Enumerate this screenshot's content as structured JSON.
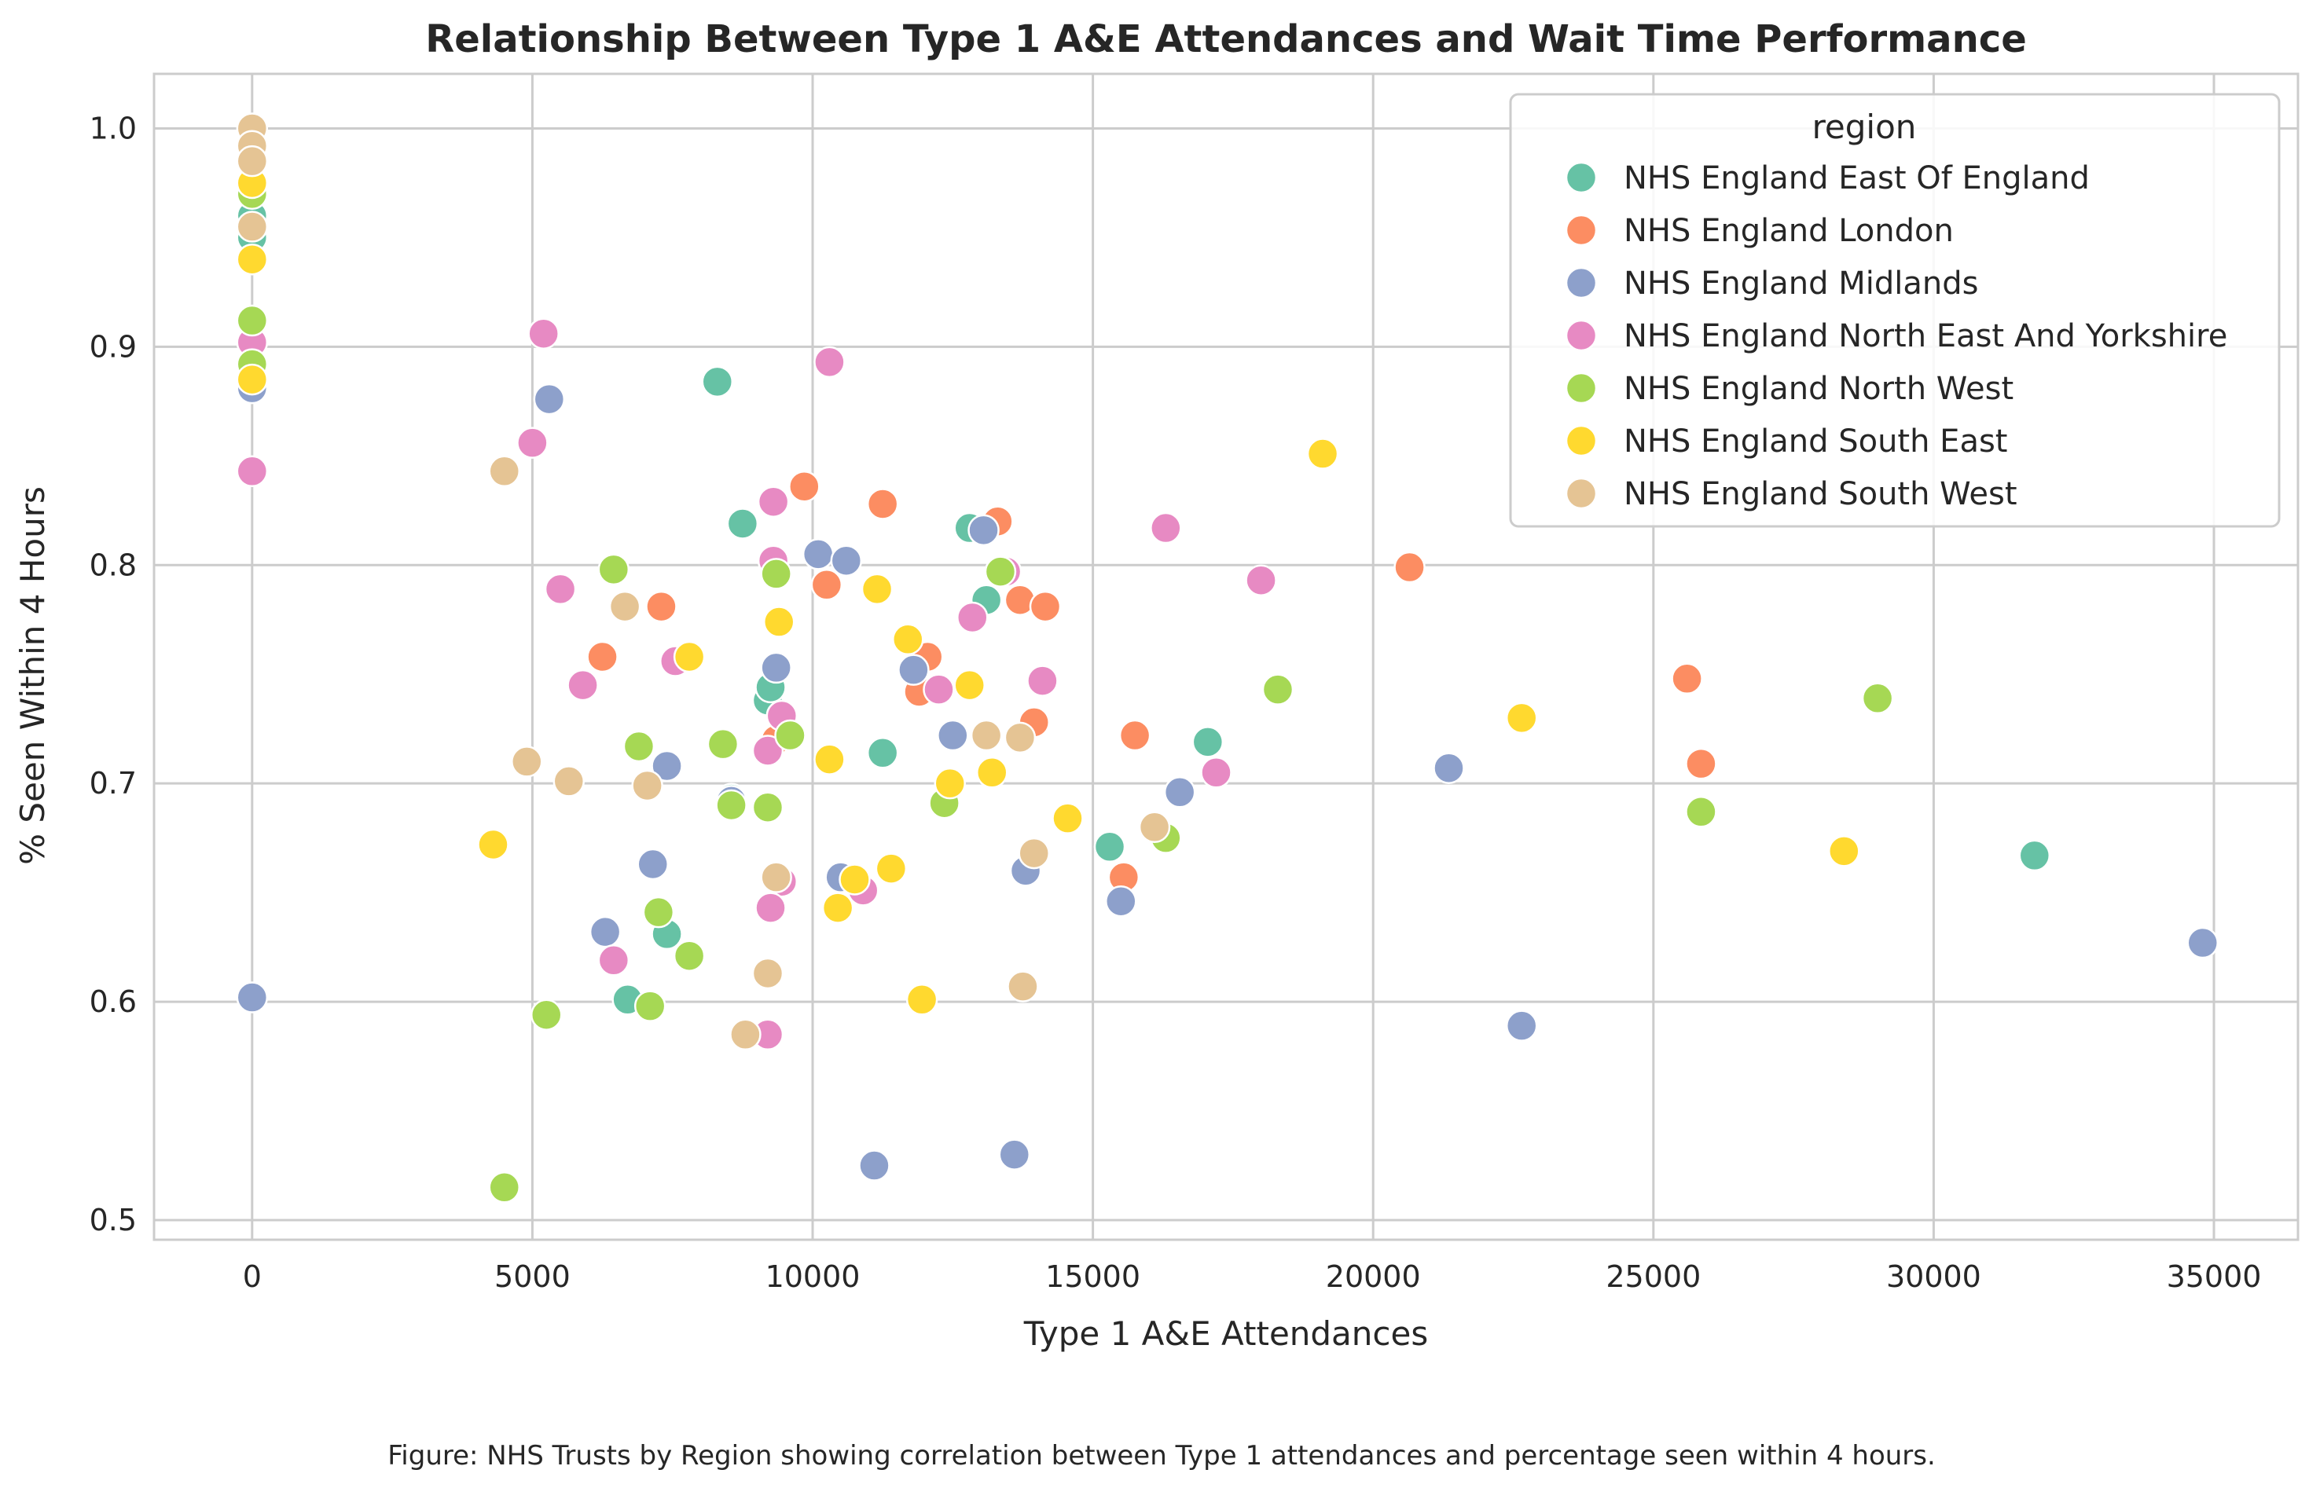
{
  "chart_data": {
    "type": "scatter",
    "title": "Relationship Between Type 1 A&E Attendances and Wait Time Performance",
    "xlabel": "Type 1 A&E Attendances",
    "ylabel": "% Seen Within 4 Hours",
    "xlim": [
      -1750,
      36500
    ],
    "ylim": [
      0.491,
      1.025
    ],
    "x_ticks": [
      0,
      5000,
      10000,
      15000,
      20000,
      25000,
      30000,
      35000
    ],
    "y_ticks": [
      0.5,
      0.6,
      0.7,
      0.8,
      0.9,
      1.0
    ],
    "y_tick_labels": [
      "0.5",
      "0.6",
      "0.7",
      "0.8",
      "0.9",
      "1.0"
    ],
    "grid": true,
    "legend_title": "region",
    "legend_position": "top-right",
    "caption": "Figure: NHS Trusts by Region showing correlation between Type 1 attendances and percentage seen within 4 hours.",
    "series": [
      {
        "name": "NHS England East Of England",
        "color": "#66c2a5",
        "points": [
          [
            0,
            0.95
          ],
          [
            0,
            0.96
          ],
          [
            8300,
            0.884
          ],
          [
            8750,
            0.819
          ],
          [
            12800,
            0.817
          ],
          [
            13100,
            0.784
          ],
          [
            9200,
            0.738
          ],
          [
            9250,
            0.744
          ],
          [
            11250,
            0.714
          ],
          [
            8550,
            0.693
          ],
          [
            7400,
            0.631
          ],
          [
            6700,
            0.601
          ],
          [
            15300,
            0.671
          ],
          [
            17050,
            0.719
          ],
          [
            31800,
            0.667
          ]
        ]
      },
      {
        "name": "NHS England London",
        "color": "#fc8d62",
        "points": [
          [
            9850,
            0.836
          ],
          [
            11250,
            0.828
          ],
          [
            13300,
            0.82
          ],
          [
            10250,
            0.791
          ],
          [
            7300,
            0.781
          ],
          [
            13700,
            0.784
          ],
          [
            14150,
            0.781
          ],
          [
            12050,
            0.758
          ],
          [
            6250,
            0.758
          ],
          [
            11900,
            0.742
          ],
          [
            13950,
            0.728
          ],
          [
            15750,
            0.722
          ],
          [
            15550,
            0.657
          ],
          [
            9350,
            0.72
          ],
          [
            20650,
            0.799
          ],
          [
            25600,
            0.748
          ],
          [
            25850,
            0.709
          ]
        ]
      },
      {
        "name": "NHS England Midlands",
        "color": "#8da0cb",
        "points": [
          [
            0,
            0.881
          ],
          [
            0,
            0.602
          ],
          [
            5300,
            0.876
          ],
          [
            10100,
            0.805
          ],
          [
            10600,
            0.802
          ],
          [
            13050,
            0.816
          ],
          [
            9350,
            0.753
          ],
          [
            11800,
            0.752
          ],
          [
            12500,
            0.722
          ],
          [
            7400,
            0.708
          ],
          [
            8550,
            0.692
          ],
          [
            16550,
            0.696
          ],
          [
            7150,
            0.663
          ],
          [
            6300,
            0.632
          ],
          [
            10500,
            0.657
          ],
          [
            13800,
            0.66
          ],
          [
            15500,
            0.646
          ],
          [
            21350,
            0.707
          ],
          [
            11100,
            0.525
          ],
          [
            13600,
            0.53
          ],
          [
            22650,
            0.589
          ],
          [
            34800,
            0.627
          ]
        ]
      },
      {
        "name": "NHS England North East And Yorkshire",
        "color": "#e78ac3",
        "points": [
          [
            0,
            0.902
          ],
          [
            0,
            0.843
          ],
          [
            5200,
            0.906
          ],
          [
            5000,
            0.856
          ],
          [
            10300,
            0.893
          ],
          [
            9300,
            0.829
          ],
          [
            9300,
            0.802
          ],
          [
            13450,
            0.797
          ],
          [
            12850,
            0.776
          ],
          [
            5500,
            0.789
          ],
          [
            7550,
            0.756
          ],
          [
            5900,
            0.745
          ],
          [
            12250,
            0.743
          ],
          [
            14100,
            0.747
          ],
          [
            9450,
            0.731
          ],
          [
            9200,
            0.715
          ],
          [
            16300,
            0.817
          ],
          [
            18000,
            0.793
          ],
          [
            17200,
            0.705
          ],
          [
            9450,
            0.655
          ],
          [
            10900,
            0.651
          ],
          [
            9250,
            0.643
          ],
          [
            6450,
            0.619
          ],
          [
            9200,
            0.585
          ]
        ]
      },
      {
        "name": "NHS England North West",
        "color": "#a6d854",
        "points": [
          [
            0,
            0.97
          ],
          [
            0,
            0.912
          ],
          [
            0,
            0.892
          ],
          [
            6450,
            0.798
          ],
          [
            9350,
            0.796
          ],
          [
            13350,
            0.797
          ],
          [
            9600,
            0.722
          ],
          [
            8400,
            0.718
          ],
          [
            6900,
            0.717
          ],
          [
            8550,
            0.69
          ],
          [
            9200,
            0.689
          ],
          [
            12350,
            0.691
          ],
          [
            7250,
            0.641
          ],
          [
            7800,
            0.621
          ],
          [
            5250,
            0.594
          ],
          [
            7100,
            0.598
          ],
          [
            16300,
            0.675
          ],
          [
            18300,
            0.743
          ],
          [
            25850,
            0.687
          ],
          [
            29000,
            0.739
          ],
          [
            4500,
            0.515
          ]
        ]
      },
      {
        "name": "NHS England South East",
        "color": "#ffd92f",
        "points": [
          [
            0,
            0.975
          ],
          [
            0,
            0.94
          ],
          [
            0,
            0.885
          ],
          [
            11150,
            0.789
          ],
          [
            9400,
            0.774
          ],
          [
            7800,
            0.758
          ],
          [
            11700,
            0.766
          ],
          [
            12800,
            0.745
          ],
          [
            10300,
            0.711
          ],
          [
            12450,
            0.7
          ],
          [
            13200,
            0.705
          ],
          [
            14550,
            0.684
          ],
          [
            11400,
            0.661
          ],
          [
            10750,
            0.656
          ],
          [
            10450,
            0.643
          ],
          [
            4300,
            0.672
          ],
          [
            11950,
            0.601
          ],
          [
            19100,
            0.851
          ],
          [
            22650,
            0.73
          ],
          [
            28400,
            0.669
          ]
        ]
      },
      {
        "name": "NHS England South West",
        "color": "#e5c494",
        "points": [
          [
            0,
            1.0
          ],
          [
            0,
            0.992
          ],
          [
            0,
            0.985
          ],
          [
            0,
            0.955
          ],
          [
            4500,
            0.843
          ],
          [
            6650,
            0.781
          ],
          [
            4900,
            0.71
          ],
          [
            5650,
            0.701
          ],
          [
            7050,
            0.699
          ],
          [
            13100,
            0.722
          ],
          [
            13700,
            0.721
          ],
          [
            13950,
            0.668
          ],
          [
            16100,
            0.68
          ],
          [
            9350,
            0.657
          ],
          [
            9200,
            0.613
          ],
          [
            8800,
            0.585
          ],
          [
            13750,
            0.607
          ]
        ]
      }
    ]
  }
}
